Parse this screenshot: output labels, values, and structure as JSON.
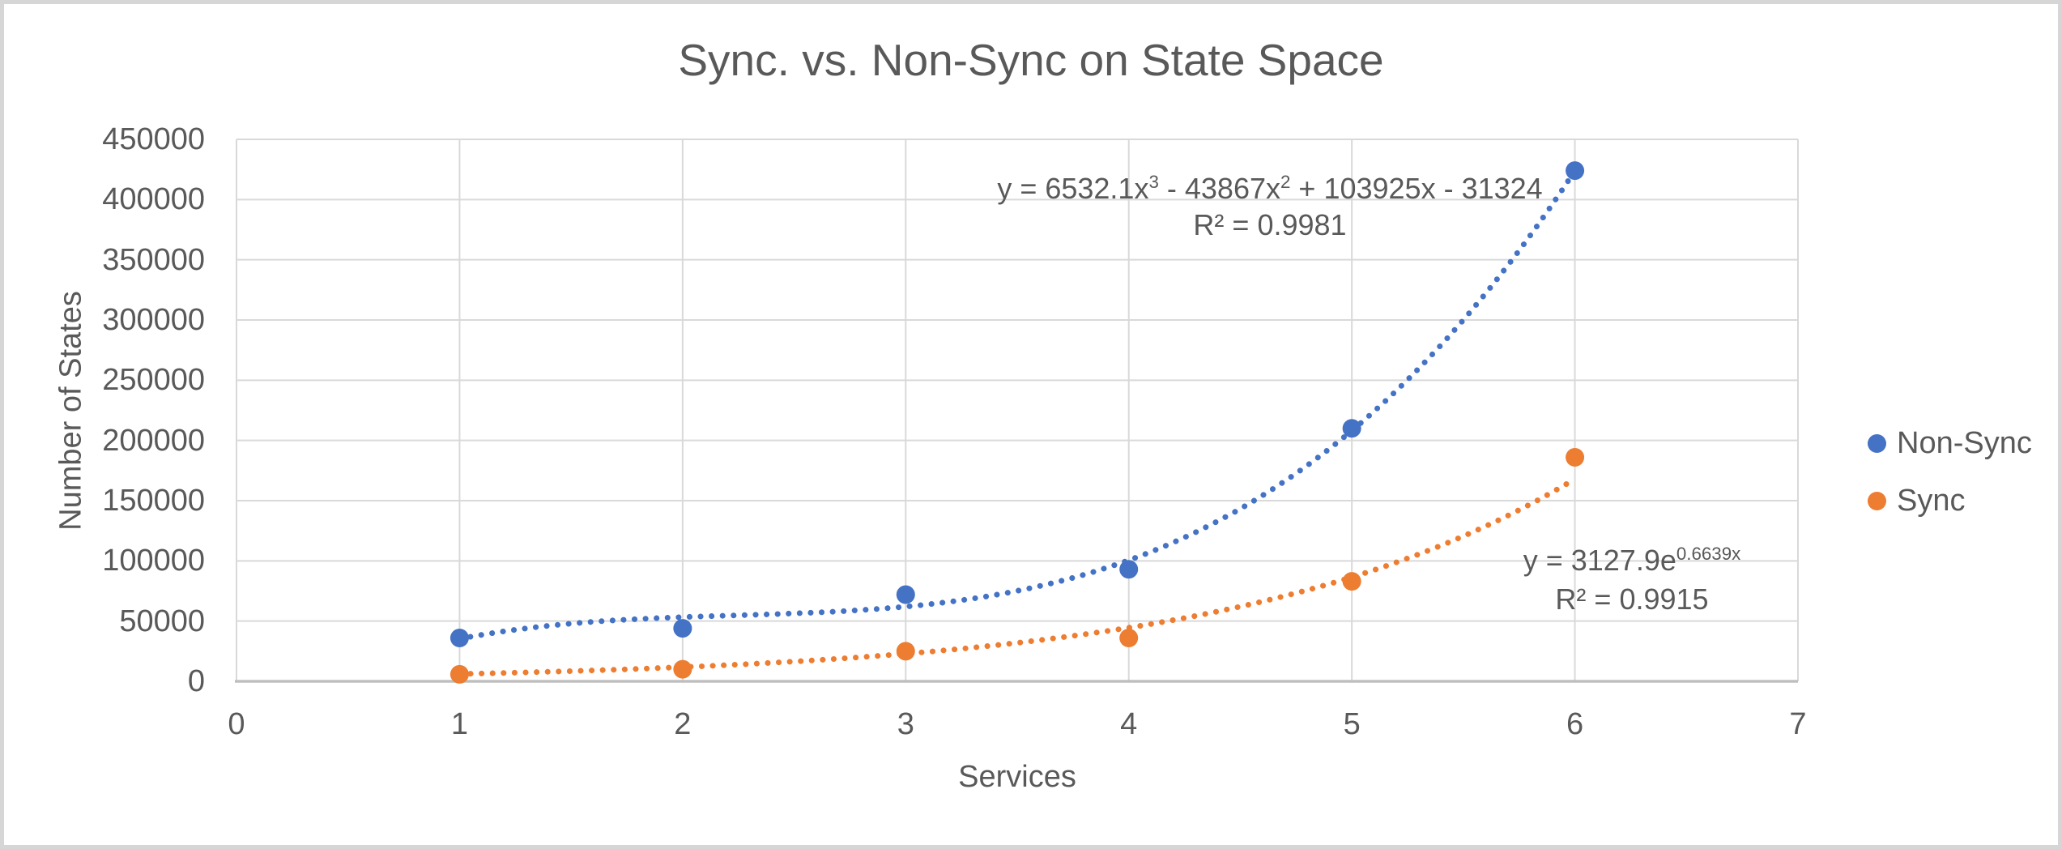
{
  "window": {
    "background": "#ffffff",
    "border_color": "#d6d6d6"
  },
  "chart_data": {
    "type": "scatter",
    "title": "Sync. vs. Non-Sync on State Space",
    "xlabel": "Services",
    "ylabel": "Number of States",
    "xlim": [
      0,
      7
    ],
    "ylim": [
      0,
      450000
    ],
    "x_ticks": [
      0,
      1,
      2,
      3,
      4,
      5,
      6,
      7
    ],
    "y_ticks": [
      0,
      50000,
      100000,
      150000,
      200000,
      250000,
      300000,
      350000,
      400000,
      450000
    ],
    "grid": true,
    "legend_position": "right",
    "text_color": "#595959",
    "gridline_color": "#D9D9D9",
    "axis_line_color": "#BFBFBF",
    "x": [
      1,
      2,
      3,
      4,
      5,
      6
    ],
    "series": [
      {
        "name": "Non-Sync",
        "color": "#4472C4",
        "marker": "circle",
        "values": [
          36000,
          44000,
          72000,
          93000,
          210000,
          424000
        ],
        "trendline": {
          "kind": "polynomial",
          "order": 3,
          "coefficients": [
            6532.1,
            -43867,
            103925,
            -31324
          ],
          "style": "dotted",
          "equation_parts": [
            {
              "text": "y = 6532.1x"
            },
            {
              "sup": "3"
            },
            {
              "text": " - 43867x"
            },
            {
              "sup": "2"
            },
            {
              "text": " + 103925x - 31324"
            }
          ],
          "r2_label": "R² = 0.9981"
        }
      },
      {
        "name": "Sync",
        "color": "#ED7D31",
        "marker": "circle",
        "values": [
          5800,
          10000,
          25000,
          36000,
          83000,
          186000
        ],
        "trendline": {
          "kind": "exponential",
          "a": 3127.9,
          "b": 0.6639,
          "style": "dotted",
          "equation_parts": [
            {
              "text": "y = 3127.9e"
            },
            {
              "sup": "0.6639x"
            }
          ],
          "r2_label": "R² = 0.9915"
        }
      }
    ]
  }
}
